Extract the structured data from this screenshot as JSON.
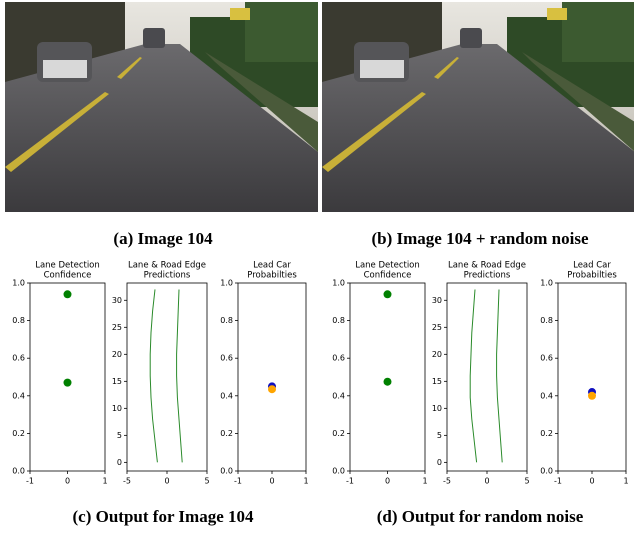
{
  "captions": [
    "(a) Image 104",
    "(b) Image 104 + random noise",
    "(c) Output for Image 104",
    "(d) Output for random noise"
  ],
  "chart_data": [
    {
      "type": "scatter",
      "title": [
        "Lane Detection",
        "Confidence"
      ],
      "xlim": [
        -1,
        1
      ],
      "xticks": [
        -1,
        0,
        1
      ],
      "ylim": [
        0,
        1
      ],
      "yticks": [
        {
          "value": 0,
          "label": "0.0"
        },
        {
          "value": 0.2,
          "label": "0.2"
        },
        {
          "value": 0.4,
          "label": "0.4"
        },
        {
          "value": 0.6,
          "label": "0.6"
        },
        {
          "value": 0.8,
          "label": "0.8"
        },
        {
          "value": 1,
          "label": "1.0"
        }
      ],
      "points": [
        {
          "x": 0,
          "y": 0.94,
          "color": "#008000"
        },
        {
          "x": 0,
          "y": 0.47,
          "color": "#008000"
        }
      ]
    },
    {
      "type": "line",
      "title": [
        "Lane & Road Edge",
        "Predictions"
      ],
      "xlim": [
        -5,
        5
      ],
      "xticks": [
        -5,
        0,
        5
      ],
      "ylim": [
        -1.6,
        33.2
      ],
      "yticks": [
        0,
        5,
        10,
        15,
        20,
        25,
        30
      ],
      "y": [
        0,
        4,
        8,
        12,
        16,
        20,
        24,
        28,
        32
      ],
      "series": [
        {
          "color": "#2a8a2a",
          "values": [
            -1.2,
            -1.5,
            -1.8,
            -2.0,
            -2.1,
            -2.1,
            -2.0,
            -1.8,
            -1.5
          ]
        },
        {
          "color": "#2a8a2a",
          "values": [
            1.9,
            1.7,
            1.5,
            1.3,
            1.2,
            1.2,
            1.3,
            1.4,
            1.5
          ]
        }
      ]
    },
    {
      "type": "scatter",
      "title": [
        "Lead Car",
        "Probabilties"
      ],
      "xlim": [
        -1,
        1
      ],
      "xticks": [
        -1,
        0,
        1
      ],
      "ylim": [
        0,
        1
      ],
      "yticks": [
        {
          "value": 0,
          "label": "0.0"
        },
        {
          "value": 0.2,
          "label": "0.2"
        },
        {
          "value": 0.4,
          "label": "0.4"
        },
        {
          "value": 0.6,
          "label": "0.6"
        },
        {
          "value": 0.8,
          "label": "0.8"
        },
        {
          "value": 1,
          "label": "1.0"
        }
      ],
      "points": [
        {
          "x": 0,
          "y": 0.45,
          "color": "#1010c0"
        },
        {
          "x": 0,
          "y": 0.435,
          "color": "#ffa500"
        }
      ]
    },
    {
      "type": "scatter",
      "title": [
        "Lane Detection",
        "Confidence"
      ],
      "xlim": [
        -1,
        1
      ],
      "xticks": [
        -1,
        0,
        1
      ],
      "ylim": [
        0,
        1
      ],
      "yticks": [
        {
          "value": 0,
          "label": "0.0"
        },
        {
          "value": 0.2,
          "label": "0.2"
        },
        {
          "value": 0.4,
          "label": "0.4"
        },
        {
          "value": 0.6,
          "label": "0.6"
        },
        {
          "value": 0.8,
          "label": "0.8"
        },
        {
          "value": 1,
          "label": "1.0"
        }
      ],
      "points": [
        {
          "x": 0,
          "y": 0.94,
          "color": "#008000"
        },
        {
          "x": 0,
          "y": 0.475,
          "color": "#008000"
        }
      ]
    },
    {
      "type": "line",
      "title": [
        "Lane & Road Edge",
        "Predictions"
      ],
      "xlim": [
        -5,
        5
      ],
      "xticks": [
        -5,
        0,
        5
      ],
      "ylim": [
        -1.6,
        33.2
      ],
      "yticks": [
        0,
        5,
        10,
        15,
        20,
        25,
        30
      ],
      "y": [
        0,
        4,
        8,
        12,
        16,
        20,
        24,
        28,
        32
      ],
      "series": [
        {
          "color": "#2a8a2a",
          "values": [
            -1.3,
            -1.6,
            -1.9,
            -2.1,
            -2.1,
            -2.0,
            -1.9,
            -1.7,
            -1.5
          ]
        },
        {
          "color": "#2a8a2a",
          "values": [
            1.9,
            1.7,
            1.5,
            1.3,
            1.2,
            1.2,
            1.3,
            1.4,
            1.5
          ]
        }
      ]
    },
    {
      "type": "scatter",
      "title": [
        "Lead Car",
        "Probabilties"
      ],
      "xlim": [
        -1,
        1
      ],
      "xticks": [
        -1,
        0,
        1
      ],
      "ylim": [
        0,
        1
      ],
      "yticks": [
        {
          "value": 0,
          "label": "0.0"
        },
        {
          "value": 0.2,
          "label": "0.2"
        },
        {
          "value": 0.4,
          "label": "0.4"
        },
        {
          "value": 0.6,
          "label": "0.6"
        },
        {
          "value": 0.8,
          "label": "0.8"
        },
        {
          "value": 1,
          "label": "1.0"
        }
      ],
      "points": [
        {
          "x": 0,
          "y": 0.42,
          "color": "#1010c0"
        },
        {
          "x": 0,
          "y": 0.4,
          "color": "#ffa500"
        }
      ]
    }
  ]
}
